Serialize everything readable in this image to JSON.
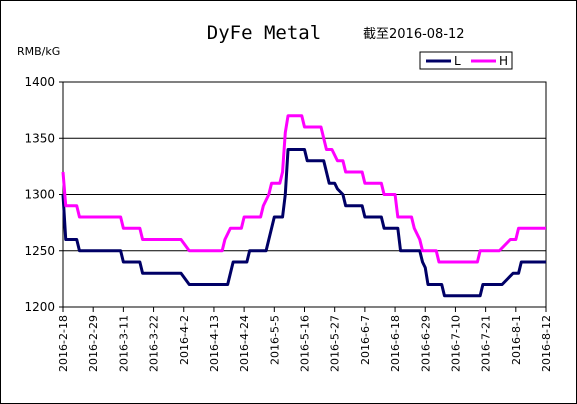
{
  "chart_data": {
    "type": "line",
    "title": "DyFe Metal",
    "subtitle": "截至2016-08-12",
    "ylabel": "RMB/kG",
    "xlabel": "",
    "ylim": [
      1200,
      1400
    ],
    "yticks": [
      1200,
      1250,
      1300,
      1350,
      1400
    ],
    "grid": "horizontal",
    "legend_position": "top-right",
    "x_tick_labels": [
      "2016-2-18",
      "2016-2-29",
      "2016-3-11",
      "2016-3-22",
      "2016-4-2",
      "2016-4-13",
      "2016-4-24",
      "2016-5-5",
      "2016-5-16",
      "2016-5-27",
      "2016-6-7",
      "2016-6-18",
      "2016-6-29",
      "2016-7-10",
      "2016-7-21",
      "2016-8-1",
      "2016-8-12"
    ],
    "x_start": "2016-02-18",
    "x_end": "2016-08-12",
    "series": [
      {
        "name": "L",
        "color": "#000066",
        "points": [
          [
            "2016-02-18",
            1300
          ],
          [
            "2016-02-19",
            1260
          ],
          [
            "2016-02-23",
            1260
          ],
          [
            "2016-02-24",
            1250
          ],
          [
            "2016-03-10",
            1250
          ],
          [
            "2016-03-11",
            1240
          ],
          [
            "2016-03-17",
            1240
          ],
          [
            "2016-03-18",
            1230
          ],
          [
            "2016-04-01",
            1230
          ],
          [
            "2016-04-04",
            1220
          ],
          [
            "2016-04-18",
            1220
          ],
          [
            "2016-04-19",
            1230
          ],
          [
            "2016-04-20",
            1240
          ],
          [
            "2016-04-25",
            1240
          ],
          [
            "2016-04-26",
            1250
          ],
          [
            "2016-05-02",
            1250
          ],
          [
            "2016-05-03",
            1260
          ],
          [
            "2016-05-04",
            1270
          ],
          [
            "2016-05-05",
            1280
          ],
          [
            "2016-05-08",
            1280
          ],
          [
            "2016-05-09",
            1300
          ],
          [
            "2016-05-10",
            1340
          ],
          [
            "2016-05-16",
            1340
          ],
          [
            "2016-05-17",
            1330
          ],
          [
            "2016-05-23",
            1330
          ],
          [
            "2016-05-25",
            1310
          ],
          [
            "2016-05-27",
            1310
          ],
          [
            "2016-05-28",
            1305
          ],
          [
            "2016-05-30",
            1300
          ],
          [
            "2016-05-31",
            1290
          ],
          [
            "2016-06-06",
            1290
          ],
          [
            "2016-06-07",
            1280
          ],
          [
            "2016-06-13",
            1280
          ],
          [
            "2016-06-14",
            1270
          ],
          [
            "2016-06-19",
            1270
          ],
          [
            "2016-06-20",
            1250
          ],
          [
            "2016-06-27",
            1250
          ],
          [
            "2016-06-28",
            1240
          ],
          [
            "2016-06-29",
            1235
          ],
          [
            "2016-06-30",
            1220
          ],
          [
            "2016-07-05",
            1220
          ],
          [
            "2016-07-06",
            1210
          ],
          [
            "2016-07-19",
            1210
          ],
          [
            "2016-07-20",
            1220
          ],
          [
            "2016-07-27",
            1220
          ],
          [
            "2016-07-29",
            1225
          ],
          [
            "2016-07-31",
            1230
          ],
          [
            "2016-08-02",
            1230
          ],
          [
            "2016-08-03",
            1240
          ],
          [
            "2016-08-12",
            1240
          ]
        ]
      },
      {
        "name": "H",
        "color": "#ff00ff",
        "points": [
          [
            "2016-02-18",
            1320
          ],
          [
            "2016-02-19",
            1290
          ],
          [
            "2016-02-23",
            1290
          ],
          [
            "2016-02-24",
            1280
          ],
          [
            "2016-03-10",
            1280
          ],
          [
            "2016-03-11",
            1270
          ],
          [
            "2016-03-17",
            1270
          ],
          [
            "2016-03-18",
            1260
          ],
          [
            "2016-04-01",
            1260
          ],
          [
            "2016-04-04",
            1250
          ],
          [
            "2016-04-16",
            1250
          ],
          [
            "2016-04-17",
            1260
          ],
          [
            "2016-04-18",
            1265
          ],
          [
            "2016-04-19",
            1270
          ],
          [
            "2016-04-23",
            1270
          ],
          [
            "2016-04-24",
            1280
          ],
          [
            "2016-04-30",
            1280
          ],
          [
            "2016-05-01",
            1290
          ],
          [
            "2016-05-03",
            1300
          ],
          [
            "2016-05-04",
            1310
          ],
          [
            "2016-05-07",
            1310
          ],
          [
            "2016-05-08",
            1320
          ],
          [
            "2016-05-09",
            1355
          ],
          [
            "2016-05-10",
            1370
          ],
          [
            "2016-05-15",
            1370
          ],
          [
            "2016-05-16",
            1360
          ],
          [
            "2016-05-22",
            1360
          ],
          [
            "2016-05-24",
            1340
          ],
          [
            "2016-05-26",
            1340
          ],
          [
            "2016-05-28",
            1330
          ],
          [
            "2016-05-30",
            1330
          ],
          [
            "2016-05-31",
            1320
          ],
          [
            "2016-06-06",
            1320
          ],
          [
            "2016-06-07",
            1310
          ],
          [
            "2016-06-13",
            1310
          ],
          [
            "2016-06-14",
            1300
          ],
          [
            "2016-06-18",
            1300
          ],
          [
            "2016-06-19",
            1280
          ],
          [
            "2016-06-24",
            1280
          ],
          [
            "2016-06-25",
            1270
          ],
          [
            "2016-06-27",
            1260
          ],
          [
            "2016-06-28",
            1250
          ],
          [
            "2016-07-03",
            1250
          ],
          [
            "2016-07-04",
            1240
          ],
          [
            "2016-07-18",
            1240
          ],
          [
            "2016-07-19",
            1250
          ],
          [
            "2016-07-26",
            1250
          ],
          [
            "2016-07-28",
            1255
          ],
          [
            "2016-07-30",
            1260
          ],
          [
            "2016-08-01",
            1260
          ],
          [
            "2016-08-02",
            1270
          ],
          [
            "2016-08-12",
            1270
          ]
        ]
      }
    ]
  }
}
